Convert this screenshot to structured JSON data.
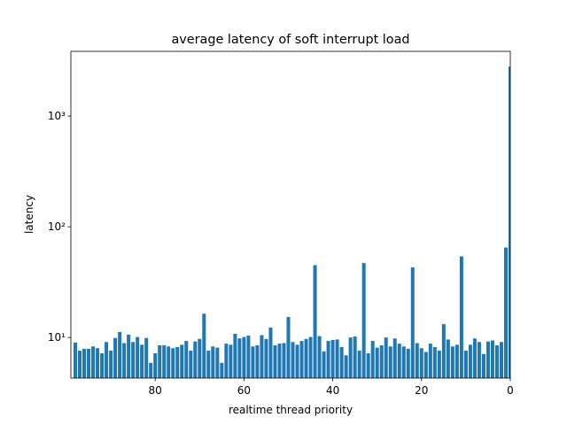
{
  "chart_data": {
    "type": "bar",
    "title": "average latency of soft interrupt load",
    "xlabel": "realtime thread priority",
    "ylabel": "latency",
    "color": "#1f77b4",
    "log_y": true,
    "x": [
      98,
      97,
      96,
      95,
      94,
      93,
      92,
      91,
      90,
      89,
      88,
      87,
      86,
      85,
      84,
      83,
      82,
      81,
      80,
      79,
      78,
      77,
      76,
      75,
      74,
      73,
      72,
      71,
      70,
      69,
      68,
      67,
      66,
      65,
      64,
      63,
      62,
      61,
      60,
      59,
      58,
      57,
      56,
      55,
      54,
      53,
      52,
      51,
      50,
      49,
      48,
      47,
      46,
      45,
      44,
      43,
      42,
      41,
      40,
      39,
      38,
      37,
      36,
      35,
      34,
      33,
      32,
      31,
      30,
      29,
      28,
      27,
      26,
      25,
      24,
      23,
      22,
      21,
      20,
      19,
      18,
      17,
      16,
      15,
      14,
      13,
      12,
      11,
      10,
      9,
      8,
      7,
      6,
      5,
      4,
      3,
      2,
      1,
      0
    ],
    "values": [
      9.0,
      7.6,
      7.9,
      7.9,
      8.3,
      8.0,
      7.2,
      9.1,
      7.6,
      9.9,
      11.2,
      8.9,
      10.6,
      9.1,
      10.1,
      8.6,
      9.9,
      5.9,
      7.2,
      8.5,
      8.5,
      8.3,
      8.0,
      8.2,
      8.6,
      9.3,
      7.6,
      9.2,
      9.7,
      16.4,
      7.6,
      8.3,
      8.1,
      5.9,
      8.8,
      8.6,
      10.8,
      9.8,
      10.1,
      10.4,
      8.3,
      8.5,
      10.5,
      9.7,
      12.3,
      8.5,
      8.8,
      8.9,
      15.3,
      9.1,
      8.6,
      9.3,
      9.7,
      10.1,
      45,
      10.3,
      7.5,
      9.3,
      9.5,
      9.6,
      8.2,
      6.9,
      10.0,
      10.2,
      7.6,
      47,
      7.2,
      9.3,
      8.1,
      8.5,
      10.0,
      8.3,
      9.8,
      8.8,
      8.3,
      7.9,
      43,
      8.9,
      8.0,
      7.4,
      8.8,
      8.2,
      7.6,
      13.2,
      9.6,
      8.3,
      8.6,
      54,
      7.6,
      8.6,
      9.8,
      9.1,
      7.1,
      9.2,
      9.4,
      8.5,
      9.1,
      65,
      2800
    ],
    "xlim": [
      99,
      0
    ],
    "xticks": [
      80,
      60,
      40,
      20,
      0
    ],
    "ylim": [
      4.3,
      3840
    ],
    "yticks": [
      {
        "value": 10,
        "label": "10¹"
      },
      {
        "value": 100,
        "label": "10²"
      },
      {
        "value": 1000,
        "label": "10³"
      }
    ]
  }
}
